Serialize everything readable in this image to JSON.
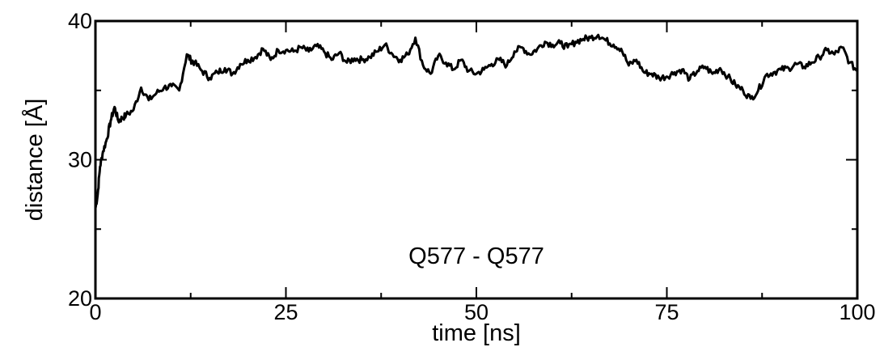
{
  "chart_data": {
    "type": "line",
    "title": "",
    "xlabel": "time [ns]",
    "ylabel": "distance [Å]",
    "xlim": [
      0,
      100
    ],
    "ylim": [
      20,
      40
    ],
    "xticks": [
      0,
      25,
      50,
      75,
      100
    ],
    "yticks": [
      20,
      30,
      40
    ],
    "grid": false,
    "legend": "none",
    "annotation": "Q577 - Q577",
    "line_color": "#000000",
    "series": [
      {
        "x": [
          0,
          0.3,
          0.6,
          1,
          1.5,
          2,
          2.5,
          3,
          3.5,
          4,
          5,
          6,
          7,
          8,
          9,
          10,
          11,
          12,
          12.5,
          13,
          14,
          15,
          16,
          17,
          18,
          19,
          20,
          21,
          22,
          23,
          24,
          25,
          26,
          27,
          28,
          29,
          30,
          31,
          32,
          33,
          34,
          35,
          36,
          37,
          38,
          39,
          40,
          41,
          42,
          43,
          44,
          45,
          46,
          47,
          48,
          49,
          50,
          51,
          52,
          53,
          54,
          55,
          56,
          57,
          58,
          59,
          60,
          61,
          62,
          63,
          64,
          65,
          66,
          67,
          68,
          69,
          70,
          71,
          72,
          73,
          74,
          75,
          76,
          77,
          78,
          79,
          80,
          81,
          82,
          83,
          84,
          85,
          86,
          87,
          88,
          89,
          90,
          91,
          92,
          93,
          94,
          95,
          96,
          97,
          98,
          99,
          100
        ],
        "values": [
          26.5,
          27.5,
          29.5,
          30.6,
          31.5,
          32.8,
          33.8,
          32.8,
          33.0,
          33.2,
          33.6,
          35.2,
          34.3,
          34.8,
          35.2,
          35.3,
          35.0,
          37.6,
          37.2,
          37.0,
          36.4,
          35.9,
          36.3,
          36.6,
          36.2,
          36.9,
          37.2,
          37.4,
          38.0,
          37.2,
          37.9,
          37.9,
          37.8,
          38.1,
          37.8,
          38.2,
          37.8,
          37.2,
          37.7,
          37.0,
          37.3,
          37.2,
          37.4,
          37.8,
          38.3,
          37.6,
          37.2,
          37.6,
          38.8,
          36.8,
          36.2,
          37.5,
          37.0,
          36.5,
          37.2,
          36.4,
          36.2,
          36.5,
          36.9,
          37.2,
          36.8,
          37.8,
          38.1,
          37.6,
          38.0,
          38.5,
          38.3,
          38.4,
          38.1,
          38.5,
          38.7,
          38.8,
          39.0,
          38.6,
          38.3,
          38.0,
          36.8,
          37.2,
          36.3,
          36.2,
          35.9,
          36.0,
          36.3,
          36.5,
          35.8,
          36.4,
          36.7,
          36.2,
          36.6,
          36.0,
          35.4,
          35.0,
          34.4,
          35.0,
          36.1,
          36.3,
          36.5,
          36.6,
          36.9,
          36.7,
          37.0,
          37.4,
          37.9,
          37.6,
          38.1,
          37.0,
          36.4
        ]
      }
    ]
  }
}
